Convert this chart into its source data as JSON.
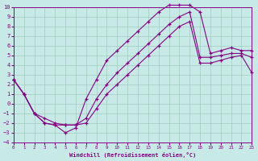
{
  "xlabel": "Windchill (Refroidissement éolien,°C)",
  "xlim": [
    0,
    23
  ],
  "ylim": [
    -4,
    10
  ],
  "xticks": [
    0,
    1,
    2,
    3,
    4,
    5,
    6,
    7,
    8,
    9,
    10,
    11,
    12,
    13,
    14,
    15,
    16,
    17,
    18,
    19,
    20,
    21,
    22,
    23
  ],
  "yticks": [
    -4,
    -3,
    -2,
    -1,
    0,
    1,
    2,
    3,
    4,
    5,
    6,
    7,
    8,
    9,
    10
  ],
  "bg_color": "#c8eae6",
  "line_color": "#880088",
  "grid_color": "#a0ccbf",
  "curve_top_x": [
    0,
    1,
    2,
    3,
    4,
    5,
    6,
    7,
    8,
    9,
    10,
    11,
    12,
    13,
    14,
    15,
    16,
    17,
    18,
    19,
    20,
    21,
    22,
    23
  ],
  "curve_top_y": [
    2.5,
    1.0,
    -1.0,
    -2.0,
    -2.2,
    -3.0,
    -2.5,
    0.5,
    2.5,
    4.5,
    5.5,
    6.5,
    7.5,
    8.5,
    9.5,
    10.2,
    10.2,
    10.2,
    9.5,
    5.2,
    5.5,
    5.8,
    5.5,
    5.5
  ],
  "curve_mid_x": [
    0,
    1,
    2,
    3,
    4,
    5,
    6,
    7,
    8,
    9,
    10,
    11,
    12,
    13,
    14,
    15,
    16,
    17,
    18,
    19,
    20,
    21,
    22,
    23
  ],
  "curve_mid_y": [
    2.5,
    1.0,
    -1.0,
    -2.0,
    -2.2,
    -2.2,
    -2.2,
    -1.5,
    0.5,
    2.0,
    3.2,
    4.2,
    5.2,
    6.2,
    7.2,
    8.2,
    9.0,
    9.5,
    4.8,
    4.8,
    5.0,
    5.2,
    5.2,
    4.8
  ],
  "curve_bot_x": [
    0,
    1,
    2,
    3,
    4,
    5,
    6,
    7,
    8,
    9,
    10,
    11,
    12,
    13,
    14,
    15,
    16,
    17,
    18,
    19,
    20,
    21,
    22,
    23
  ],
  "curve_bot_y": [
    2.5,
    1.0,
    -1.0,
    -1.5,
    -2.0,
    -2.2,
    -2.2,
    -2.0,
    -0.5,
    1.0,
    2.0,
    3.0,
    4.0,
    5.0,
    6.0,
    7.0,
    8.0,
    8.5,
    4.2,
    4.2,
    4.5,
    4.8,
    5.0,
    3.2
  ]
}
